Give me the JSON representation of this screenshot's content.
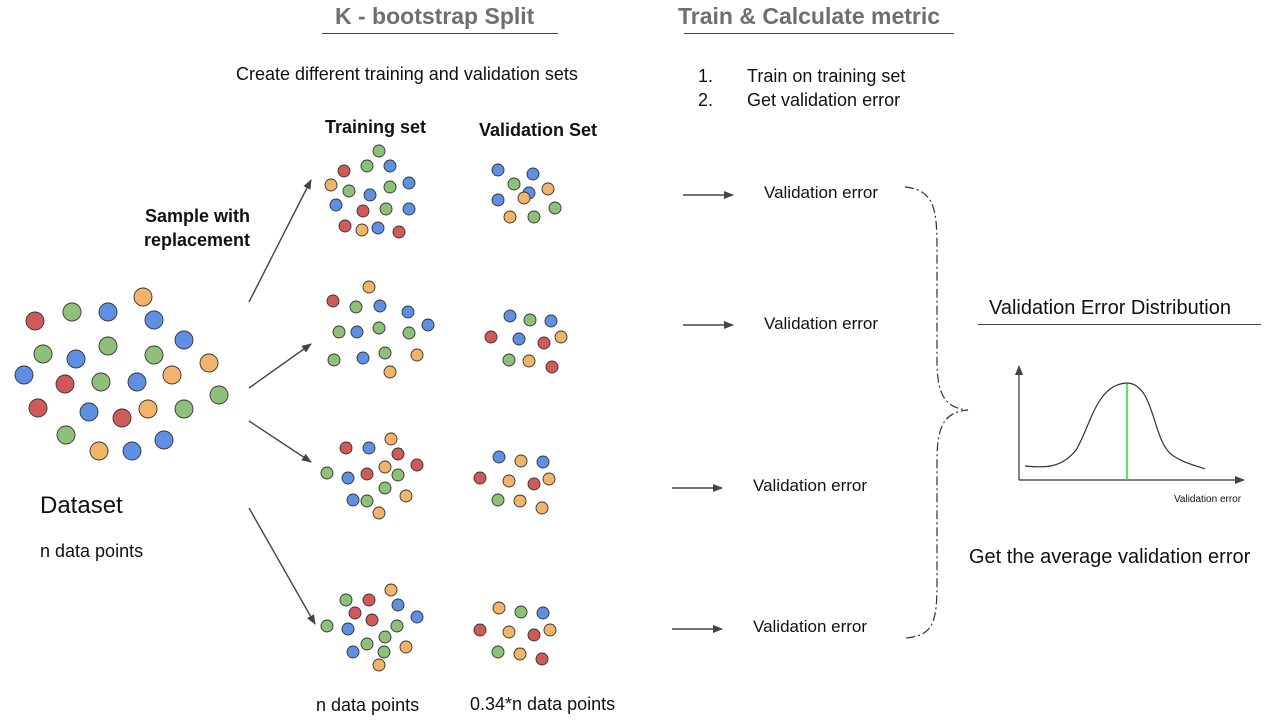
{
  "headers": {
    "split_title": "K - bootstrap Split",
    "metric_title": "Train & Calculate metric"
  },
  "split_subtitle": "Create different training and validation sets",
  "metric_steps": [
    {
      "num": "1.",
      "text": "Train on training set"
    },
    {
      "num": "2.",
      "text": "Get validation error"
    }
  ],
  "column_headers": {
    "training": "Training set",
    "validation": "Validation Set"
  },
  "sample_label_lines": [
    "Sample with",
    "replacement"
  ],
  "dataset": {
    "title": "Dataset",
    "count": "n data points"
  },
  "footer": {
    "training_count": "n data points",
    "validation_count": "0.34*n data points"
  },
  "validation_error_labels": [
    "Validation error",
    "Validation error",
    "Validation error",
    "Validation error"
  ],
  "distribution": {
    "title": "Validation Error Distribution",
    "axis_label": "Validation error",
    "conclusion": "Get the average validation error"
  },
  "colors": {
    "red": "#d05a5a",
    "green": "#8fc07a",
    "blue": "#5e8fe3",
    "orange": "#f2b36b",
    "mean_line": "#33dd33",
    "stroke": "#333333"
  }
}
